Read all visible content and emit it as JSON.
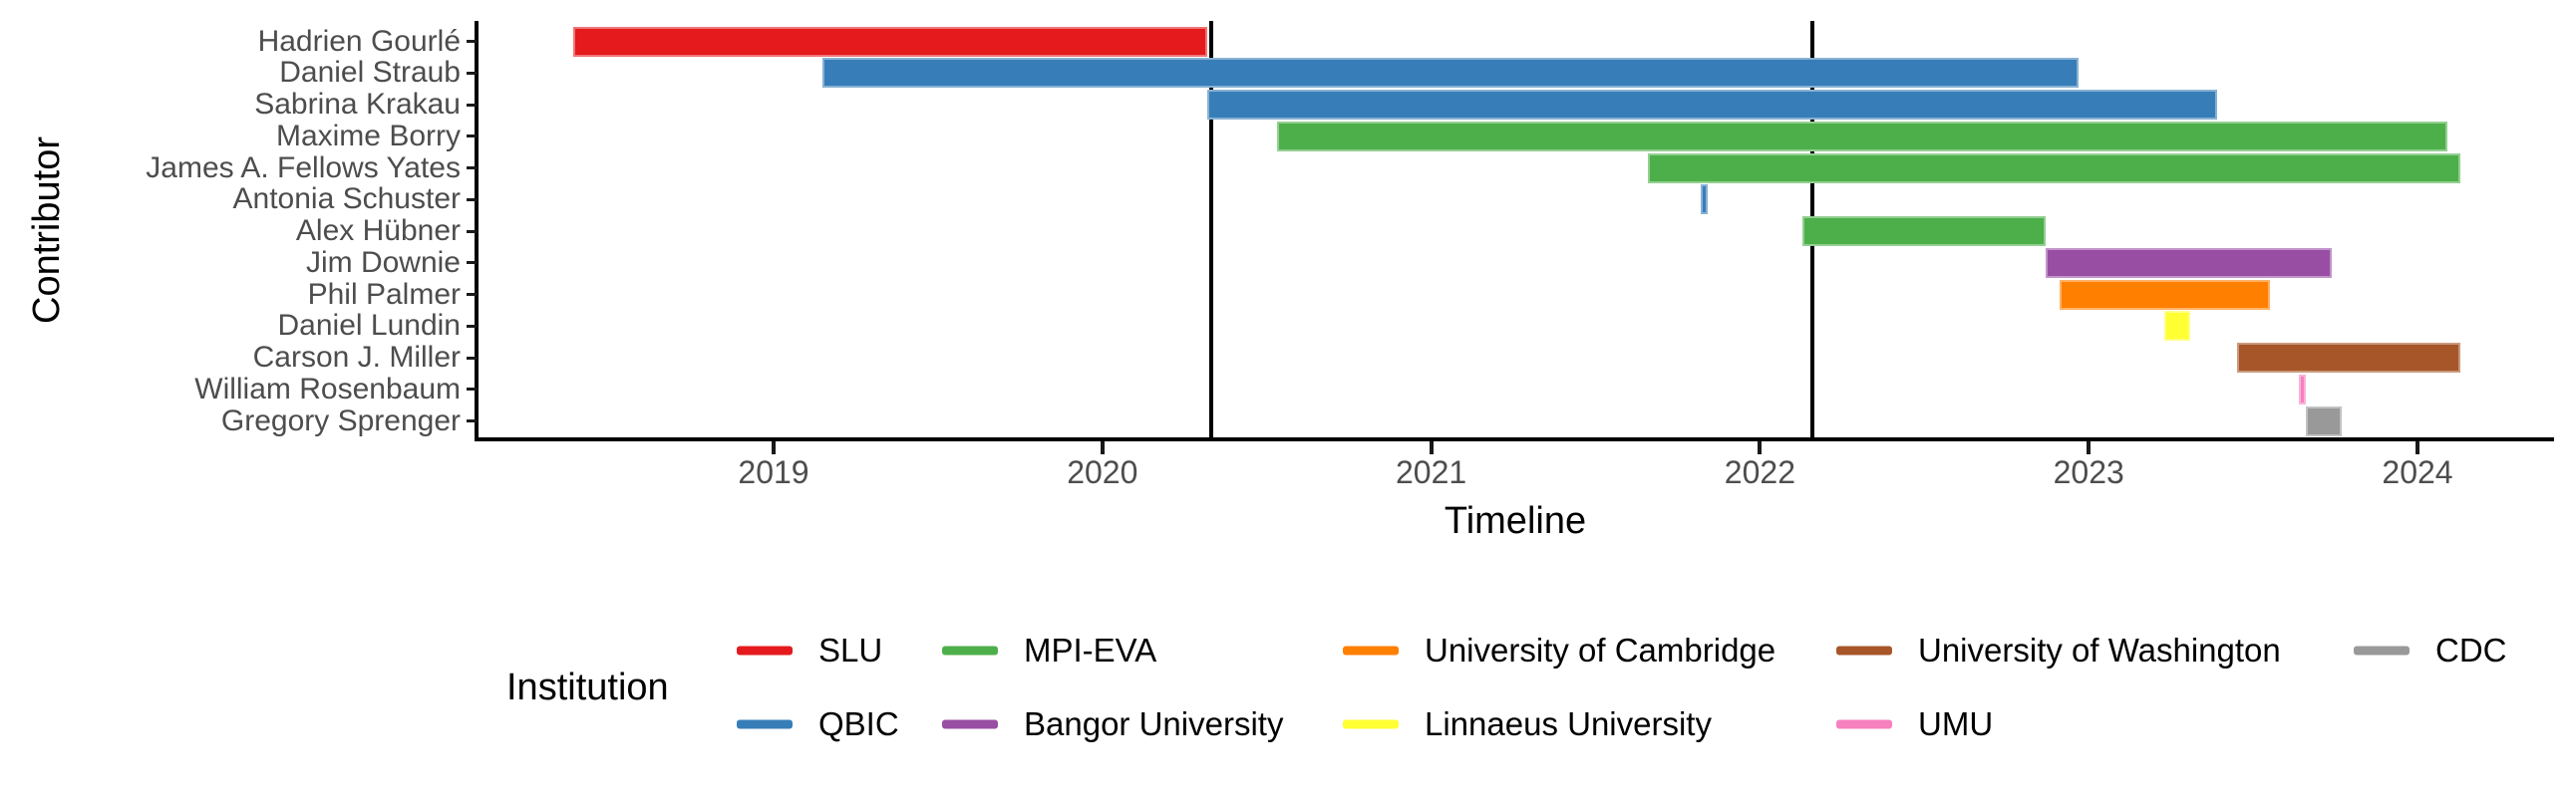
{
  "figure": {
    "y_axis_title": "Contributor",
    "x_axis_title": "Timeline",
    "legend_title": "Institution"
  },
  "chart_data": {
    "type": "bar",
    "subtype": "horizontal-gantt-timeline",
    "title": "",
    "xlabel": "Timeline",
    "ylabel": "Contributor",
    "x_ticks": [
      2019,
      2020,
      2021,
      2022,
      2023,
      2024
    ],
    "x_tick_labels": [
      "2019",
      "2020",
      "2021",
      "2022",
      "2023",
      "2024"
    ],
    "x_range": [
      2018.1,
      2024.42
    ],
    "grid": false,
    "reference_lines": [
      2020.33,
      2022.16
    ],
    "categories": [
      "Hadrien Gourlé",
      "Daniel Straub",
      "Sabrina Krakau",
      "Maxime Borry",
      "James A. Fellows Yates",
      "Antonia Schuster",
      "Alex Hübner",
      "Jim Downie",
      "Phil Palmer",
      "Daniel Lundin",
      "Carson J. Miller",
      "William Rosenbaum",
      "Gregory Sprenger"
    ],
    "bars": [
      {
        "contributor": "Hadrien Gourlé",
        "institution": "SLU",
        "start": 2018.39,
        "end": 2020.32
      },
      {
        "contributor": "Daniel Straub",
        "institution": "QBIC",
        "start": 2019.15,
        "end": 2022.97
      },
      {
        "contributor": "Sabrina Krakau",
        "institution": "QBIC",
        "start": 2020.32,
        "end": 2023.39
      },
      {
        "contributor": "Maxime Borry",
        "institution": "MPI-EVA",
        "start": 2020.53,
        "end": 2024.09
      },
      {
        "contributor": "James A. Fellows Yates",
        "institution": "MPI-EVA",
        "start": 2021.66,
        "end": 2024.13
      },
      {
        "contributor": "Antonia Schuster",
        "institution": "QBIC",
        "start": 2021.82,
        "end": 2021.84
      },
      {
        "contributor": "Alex Hübner",
        "institution": "MPI-EVA",
        "start": 2022.13,
        "end": 2022.87
      },
      {
        "contributor": "Jim Downie",
        "institution": "Bangor University",
        "start": 2022.87,
        "end": 2023.74
      },
      {
        "contributor": "Phil Palmer",
        "institution": "University of Cambridge",
        "start": 2022.91,
        "end": 2023.55
      },
      {
        "contributor": "Daniel Lundin",
        "institution": "Linnaeus University",
        "start": 2023.23,
        "end": 2023.31
      },
      {
        "contributor": "Carson J. Miller",
        "institution": "University of Washington",
        "start": 2023.45,
        "end": 2024.13
      },
      {
        "contributor": "William Rosenbaum",
        "institution": "UMU",
        "start": 2023.64,
        "end": 2023.66
      },
      {
        "contributor": "Gregory Sprenger",
        "institution": "CDC",
        "start": 2023.66,
        "end": 2023.77
      }
    ],
    "institution_colors": {
      "SLU": "#E41A1C",
      "QBIC": "#377EB8",
      "MPI-EVA": "#4DAF4A",
      "Bangor University": "#984EA3",
      "University of Cambridge": "#FF7F00",
      "Linnaeus University": "#FFFF33",
      "University of Washington": "#A65628",
      "UMU": "#F781BF",
      "CDC": "#999999"
    },
    "legend": {
      "title": "Institution",
      "position": "bottom",
      "entries": [
        {
          "label": "SLU",
          "color": "#E41A1C"
        },
        {
          "label": "QBIC",
          "color": "#377EB8"
        },
        {
          "label": "MPI-EVA",
          "color": "#4DAF4A"
        },
        {
          "label": "Bangor University",
          "color": "#984EA3"
        },
        {
          "label": "University of Cambridge",
          "color": "#FF7F00"
        },
        {
          "label": "Linnaeus University",
          "color": "#FFFF33"
        },
        {
          "label": "University of Washington",
          "color": "#A65628"
        },
        {
          "label": "UMU",
          "color": "#F781BF"
        },
        {
          "label": "CDC",
          "color": "#999999"
        }
      ]
    },
    "axis_colors": {
      "axis_line": "#000000",
      "tick_text": "#4d4d4d",
      "title_text": "#000000"
    }
  }
}
